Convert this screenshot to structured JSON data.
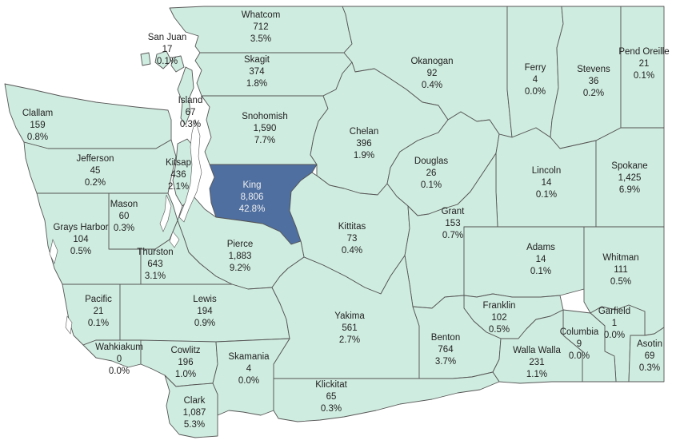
{
  "colors": {
    "base": "#cfece0",
    "highlight": "#4f6fa0",
    "border": "#555555",
    "water": "#ffffff"
  },
  "counties": [
    {
      "id": "whatcom",
      "name": "Whatcom",
      "count": "712",
      "pct": "3.5%"
    },
    {
      "id": "san-juan",
      "name": "San Juan",
      "count": "17",
      "pct": "0.1%"
    },
    {
      "id": "skagit",
      "name": "Skagit",
      "count": "374",
      "pct": "1.8%"
    },
    {
      "id": "okanogan",
      "name": "Okanogan",
      "count": "92",
      "pct": "0.4%"
    },
    {
      "id": "ferry",
      "name": "Ferry",
      "count": "4",
      "pct": "0.0%"
    },
    {
      "id": "stevens",
      "name": "Stevens",
      "count": "36",
      "pct": "0.2%"
    },
    {
      "id": "pend-oreille",
      "name": "Pend Oreille",
      "count": "21",
      "pct": "0.1%"
    },
    {
      "id": "clallam",
      "name": "Clallam",
      "count": "159",
      "pct": "0.8%"
    },
    {
      "id": "island",
      "name": "Island",
      "count": "67",
      "pct": "0.3%"
    },
    {
      "id": "snohomish",
      "name": "Snohomish",
      "count": "1,590",
      "pct": "7.7%"
    },
    {
      "id": "chelan",
      "name": "Chelan",
      "count": "396",
      "pct": "1.9%"
    },
    {
      "id": "jefferson",
      "name": "Jefferson",
      "count": "45",
      "pct": "0.2%"
    },
    {
      "id": "kitsap",
      "name": "Kitsap",
      "count": "436",
      "pct": "2.1%"
    },
    {
      "id": "king",
      "name": "King",
      "count": "8,806",
      "pct": "42.8%",
      "highlight": true
    },
    {
      "id": "douglas",
      "name": "Douglas",
      "count": "26",
      "pct": "0.1%"
    },
    {
      "id": "lincoln",
      "name": "Lincoln",
      "count": "14",
      "pct": "0.1%"
    },
    {
      "id": "spokane",
      "name": "Spokane",
      "count": "1,425",
      "pct": "6.9%"
    },
    {
      "id": "mason",
      "name": "Mason",
      "count": "60",
      "pct": "0.3%"
    },
    {
      "id": "grays-harbor",
      "name": "Grays Harbor",
      "count": "104",
      "pct": "0.5%"
    },
    {
      "id": "kittitas",
      "name": "Kittitas",
      "count": "73",
      "pct": "0.4%"
    },
    {
      "id": "grant",
      "name": "Grant",
      "count": "153",
      "pct": "0.7%"
    },
    {
      "id": "pierce",
      "name": "Pierce",
      "count": "1,883",
      "pct": "9.2%"
    },
    {
      "id": "thurston",
      "name": "Thurston",
      "count": "643",
      "pct": "3.1%"
    },
    {
      "id": "adams",
      "name": "Adams",
      "count": "14",
      "pct": "0.1%"
    },
    {
      "id": "whitman",
      "name": "Whitman",
      "count": "111",
      "pct": "0.5%"
    },
    {
      "id": "pacific",
      "name": "Pacific",
      "count": "21",
      "pct": "0.1%"
    },
    {
      "id": "lewis",
      "name": "Lewis",
      "count": "194",
      "pct": "0.9%"
    },
    {
      "id": "yakima",
      "name": "Yakima",
      "count": "561",
      "pct": "2.7%"
    },
    {
      "id": "franklin",
      "name": "Franklin",
      "count": "102",
      "pct": "0.5%"
    },
    {
      "id": "garfield",
      "name": "Garfield",
      "count": "1",
      "pct": "0.0%"
    },
    {
      "id": "wahkiakum",
      "name": "Wahkiakum",
      "count": "0",
      "pct": "0.0%"
    },
    {
      "id": "cowlitz",
      "name": "Cowlitz",
      "count": "196",
      "pct": "1.0%"
    },
    {
      "id": "skamania",
      "name": "Skamania",
      "count": "4",
      "pct": "0.0%"
    },
    {
      "id": "benton",
      "name": "Benton",
      "count": "764",
      "pct": "3.7%"
    },
    {
      "id": "columbia",
      "name": "Columbia",
      "count": "9",
      "pct": "0.0%"
    },
    {
      "id": "walla-walla",
      "name": "Walla Walla",
      "count": "231",
      "pct": "1.1%"
    },
    {
      "id": "asotin",
      "name": "Asotin",
      "count": "69",
      "pct": "0.3%"
    },
    {
      "id": "klickitat",
      "name": "Klickitat",
      "count": "65",
      "pct": "0.3%"
    },
    {
      "id": "clark",
      "name": "Clark",
      "count": "1,087",
      "pct": "5.3%"
    }
  ]
}
